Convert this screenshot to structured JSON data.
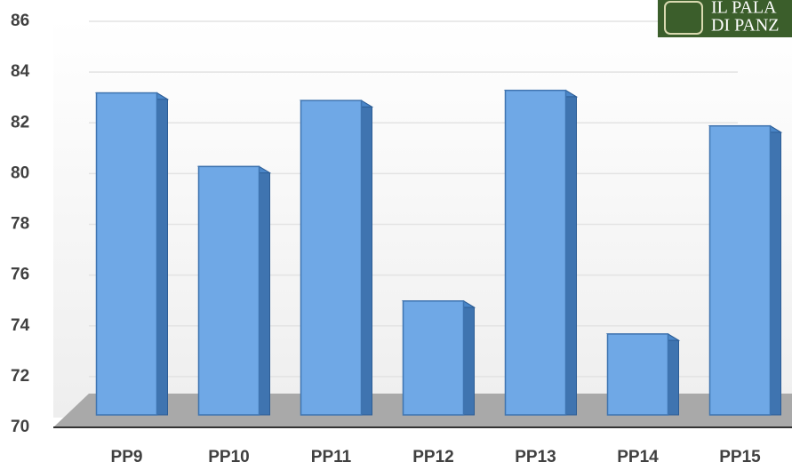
{
  "chart_data": {
    "type": "bar",
    "categories": [
      "PP9",
      "PP10",
      "PP11",
      "PP12",
      "PP13",
      "PP14",
      "PP15"
    ],
    "values": [
      83.6,
      80.7,
      83.3,
      75.4,
      83.7,
      74.1,
      82.3
    ],
    "color": "#6fa8e6",
    "ylim": [
      70,
      86
    ],
    "yticks": [
      70,
      72,
      74,
      76,
      78,
      80,
      82,
      84,
      86
    ],
    "grid": true
  },
  "logo": {
    "line1": "IL PALA",
    "line2": "DI PANZ"
  }
}
